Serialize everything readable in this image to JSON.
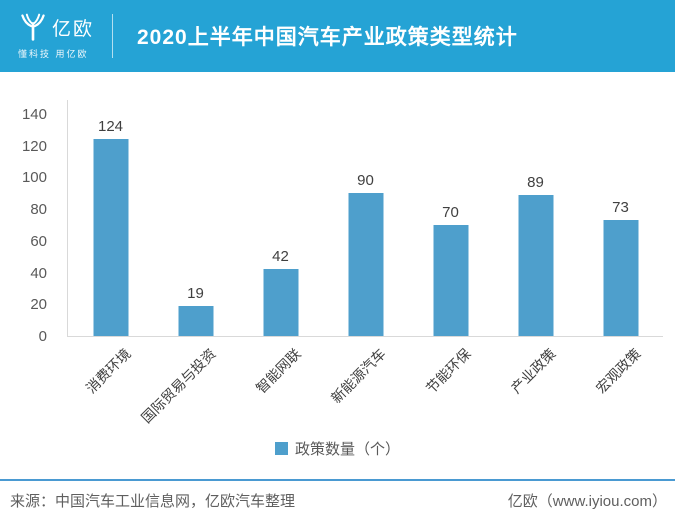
{
  "header": {
    "logo_text": "亿欧",
    "logo_tagline": "懂科技 用亿欧",
    "title": "2020上半年中国汽车产业政策类型统计"
  },
  "chart_data": {
    "type": "bar",
    "title": "2020上半年中国汽车产业政策类型统计",
    "categories": [
      "消费环境",
      "国际贸易与投资",
      "智能网联",
      "新能源汽车",
      "节能环保",
      "产业政策",
      "宏观政策"
    ],
    "values": [
      124,
      19,
      42,
      90,
      70,
      89,
      73
    ],
    "legend": "政策数量（个）",
    "xlabel": "",
    "ylabel": "",
    "ylim": [
      0,
      140
    ],
    "ytick_step": 20,
    "grid": false,
    "legend_position": "bottom-center",
    "bar_color": "#4e9fcc"
  },
  "footer": {
    "source": "来源：中国汽车工业信息网，亿欧汽车整理",
    "brand": "亿欧（www.iyiou.com）"
  },
  "colors": {
    "header_bg": "#25a3d5",
    "bar": "#4e9fcc",
    "axis_line": "#d9d9d9",
    "tick_text": "#595959",
    "value_text": "#404040",
    "footer_rule": "#4a9ad2"
  }
}
